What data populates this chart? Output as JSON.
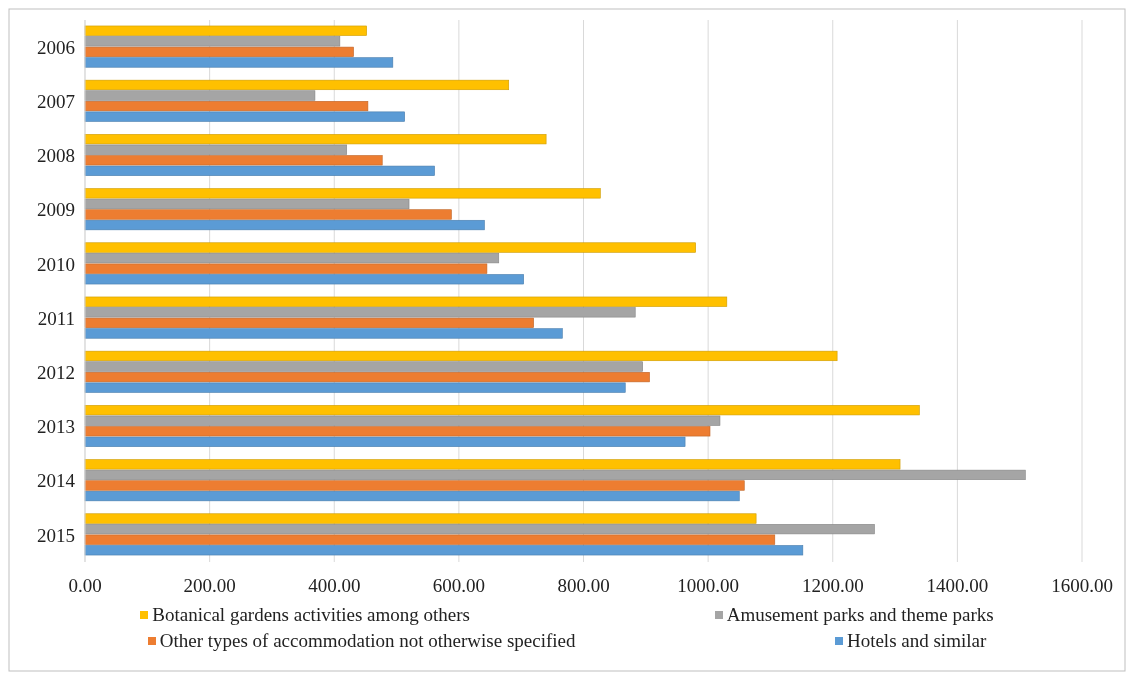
{
  "chart_data": {
    "type": "bar",
    "orientation": "horizontal",
    "categories": [
      "2006",
      "2007",
      "2008",
      "2009",
      "2010",
      "2011",
      "2012",
      "2013",
      "2014",
      "2015"
    ],
    "series": [
      {
        "name": "Botanical gardens activities among others",
        "color": "#ffc000",
        "values": [
          452,
          680,
          740,
          827,
          980,
          1030,
          1207,
          1339,
          1308,
          1077
        ]
      },
      {
        "name": "Amusement parks and theme parks",
        "color": "#a5a5a5",
        "values": [
          409,
          369,
          420,
          520,
          664,
          883,
          895,
          1019,
          1509,
          1267
        ]
      },
      {
        "name": "Other types of accommodation not otherwise specified",
        "color": "#ed7d31",
        "values": [
          431,
          454,
          477,
          588,
          645,
          720,
          906,
          1003,
          1058,
          1107
        ]
      },
      {
        "name": "Hotels and similar",
        "color": "#5b9bd5",
        "values": [
          494,
          513,
          561,
          641,
          704,
          766,
          867,
          963,
          1050,
          1152
        ]
      }
    ],
    "xlim": [
      0,
      1600
    ],
    "xticks": [
      {
        "value": 0,
        "label": "0.00"
      },
      {
        "value": 200,
        "label": "200.00"
      },
      {
        "value": 400,
        "label": "400.00"
      },
      {
        "value": 600,
        "label": "600.00"
      },
      {
        "value": 800,
        "label": "800.00"
      },
      {
        "value": 1000,
        "label": "1000.00"
      },
      {
        "value": 1200,
        "label": "1200.00"
      },
      {
        "value": 1400,
        "label": "1400.00"
      },
      {
        "value": 1600,
        "label": "1600.00"
      }
    ],
    "grid": "x",
    "legend": "bottom"
  }
}
